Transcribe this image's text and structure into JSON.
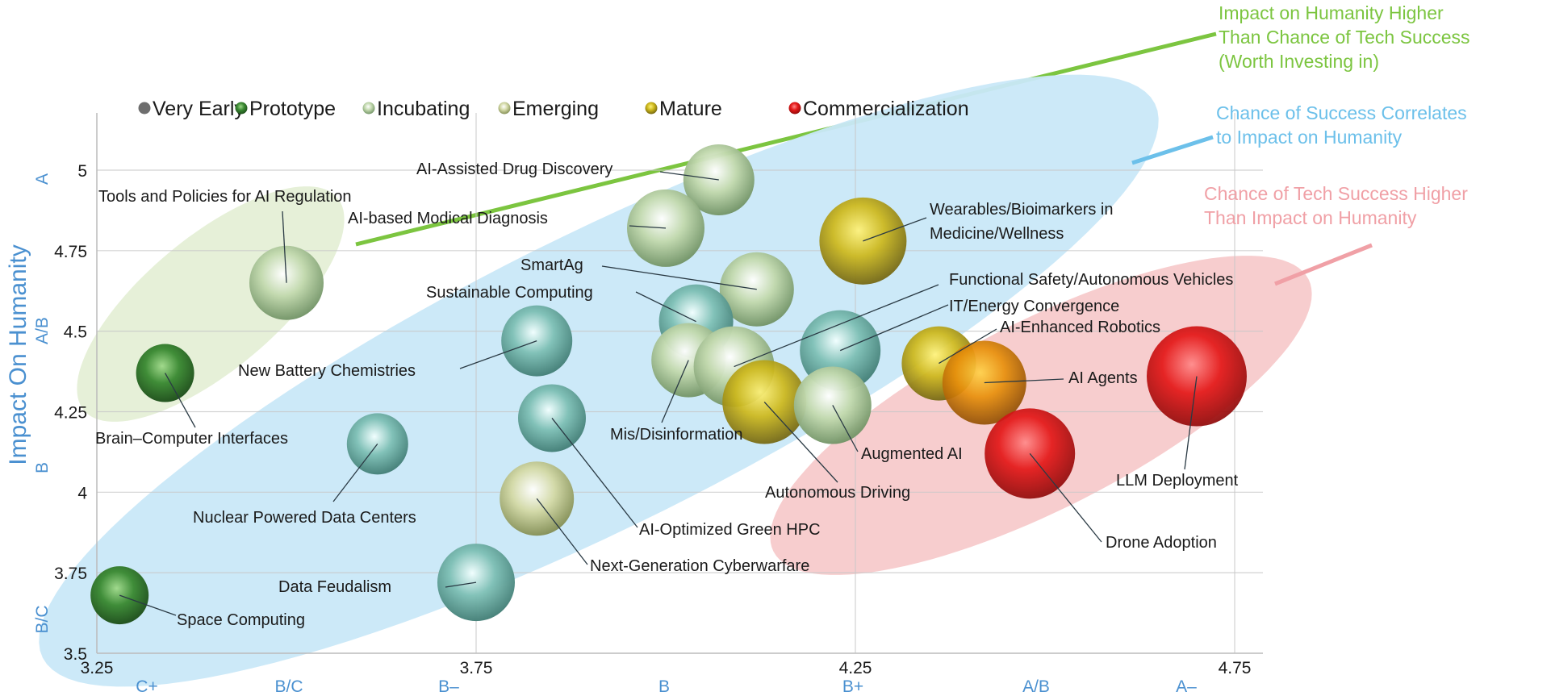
{
  "chart_data": {
    "type": "scatter",
    "subtype": "bubble",
    "ylabel": "Impact On Humanity",
    "xlabel": "",
    "xlim": [
      3.25,
      4.82
    ],
    "ylim": [
      3.5,
      5.18
    ],
    "grid": true,
    "x_ticks": [
      "3.25",
      "3.75",
      "4.25",
      "4.75"
    ],
    "y_ticks": [
      "3.5",
      "3.75",
      "4",
      "4.25",
      "4.5",
      "4.75",
      "5"
    ],
    "x_grades": [
      "C+",
      "B/C",
      "B–",
      "B",
      "B+",
      "A/B",
      "A–"
    ],
    "y_grades": [
      "A",
      "A/B",
      "B",
      "B/C"
    ],
    "legend_position": "top",
    "legend": [
      {
        "name": "Very Early",
        "color": "#6e6e6e"
      },
      {
        "name": "Prototype",
        "color": "#3d8a2e"
      },
      {
        "name": "Incubating",
        "color": "#b9d4a6"
      },
      {
        "name": "Emerging",
        "color": "#e0d5a0"
      },
      {
        "name": "Mature",
        "color": "#e0b010"
      },
      {
        "name": "Commercialization",
        "color": "#d8141c"
      }
    ],
    "stage_colors": {
      "Very Early": "#6fb5aa",
      "Prototype": "#2f7a2c",
      "Incubating": "#bcd6a8",
      "Emerging": "#cdd59e",
      "Mature": "#c9b418",
      "Commercialization": "#e01818",
      "Mature-Orange": "#e8900c"
    },
    "points": [
      {
        "label": "Tools and Policies for AI Regulation",
        "x": 3.5,
        "y": 4.65,
        "stage": "Incubating"
      },
      {
        "label": "Brain–Computer Interfaces",
        "x": 3.34,
        "y": 4.37,
        "stage": "Prototype"
      },
      {
        "label": "Space Computing",
        "x": 3.28,
        "y": 3.68,
        "stage": "Prototype"
      },
      {
        "label": "Nuclear Powered Data Centers",
        "x": 3.62,
        "y": 4.15,
        "stage": "Very Early"
      },
      {
        "label": "New Battery Chemistries",
        "x": 3.83,
        "y": 4.47,
        "stage": "Very Early"
      },
      {
        "label": "AI-Optimized Green HPC",
        "x": 3.85,
        "y": 4.23,
        "stage": "Very Early"
      },
      {
        "label": "Next-Generation Cyberwarfare",
        "x": 3.83,
        "y": 3.98,
        "stage": "Emerging"
      },
      {
        "label": "Data Feudalism",
        "x": 3.75,
        "y": 3.72,
        "stage": "Very Early"
      },
      {
        "label": "AI-Assisted Drug Discovery",
        "x": 4.07,
        "y": 4.97,
        "stage": "Incubating"
      },
      {
        "label": "AI-based Modical Diagnosis",
        "x": 4.0,
        "y": 4.82,
        "stage": "Incubating"
      },
      {
        "label": "SmartAg",
        "x": 4.12,
        "y": 4.63,
        "stage": "Incubating"
      },
      {
        "label": "Sustainable Computing",
        "x": 4.04,
        "y": 4.53,
        "stage": "Very Early"
      },
      {
        "label": "Mis/Disinformation",
        "x": 4.03,
        "y": 4.41,
        "stage": "Incubating"
      },
      {
        "label": "Functional Safety/Autonomous Vehicles",
        "x": 4.09,
        "y": 4.39,
        "stage": "Incubating"
      },
      {
        "label": "IT/Energy Convergence",
        "x": 4.23,
        "y": 4.44,
        "stage": "Very Early"
      },
      {
        "label": "Autonomous Driving",
        "x": 4.13,
        "y": 4.28,
        "stage": "Mature"
      },
      {
        "label": "Augmented AI",
        "x": 4.22,
        "y": 4.27,
        "stage": "Incubating"
      },
      {
        "label": "AI-Enhanced Robotics",
        "x": 4.36,
        "y": 4.4,
        "stage": "Mature"
      },
      {
        "label": "AI Agents",
        "x": 4.42,
        "y": 4.34,
        "stage": "Mature-Orange"
      },
      {
        "label": "Wearables/Bioimarkers in",
        "label2": "Medicine/Wellness",
        "x": 4.26,
        "y": 4.78,
        "stage": "Mature"
      },
      {
        "label": "Drone Adoption",
        "x": 4.48,
        "y": 4.12,
        "stage": "Commercialization"
      },
      {
        "label": "LLM Deployment",
        "x": 4.7,
        "y": 4.36,
        "stage": "Commercialization"
      }
    ],
    "regions": [
      {
        "name": "green",
        "color": "#e6f0d8",
        "line_color": "#7cc540"
      },
      {
        "name": "blue",
        "color": "#c9e8f8",
        "line_color": "#6cc0ea"
      },
      {
        "name": "pink",
        "color": "#f6c4c6",
        "line_color": "#f0a0a6"
      }
    ],
    "annotations": [
      {
        "lines": [
          "Impact on Humanity Higher",
          "Than Chance of Tech Success",
          "(Worth Investing in)"
        ],
        "color": "#7cc540"
      },
      {
        "lines": [
          "Chance of Success Correlates",
          "to Impact on Humanity"
        ],
        "color": "#6cc0ea"
      },
      {
        "lines": [
          "Chance of Tech Success Higher",
          "Than Impact on Humanity"
        ],
        "color": "#f0a0a6"
      }
    ]
  }
}
